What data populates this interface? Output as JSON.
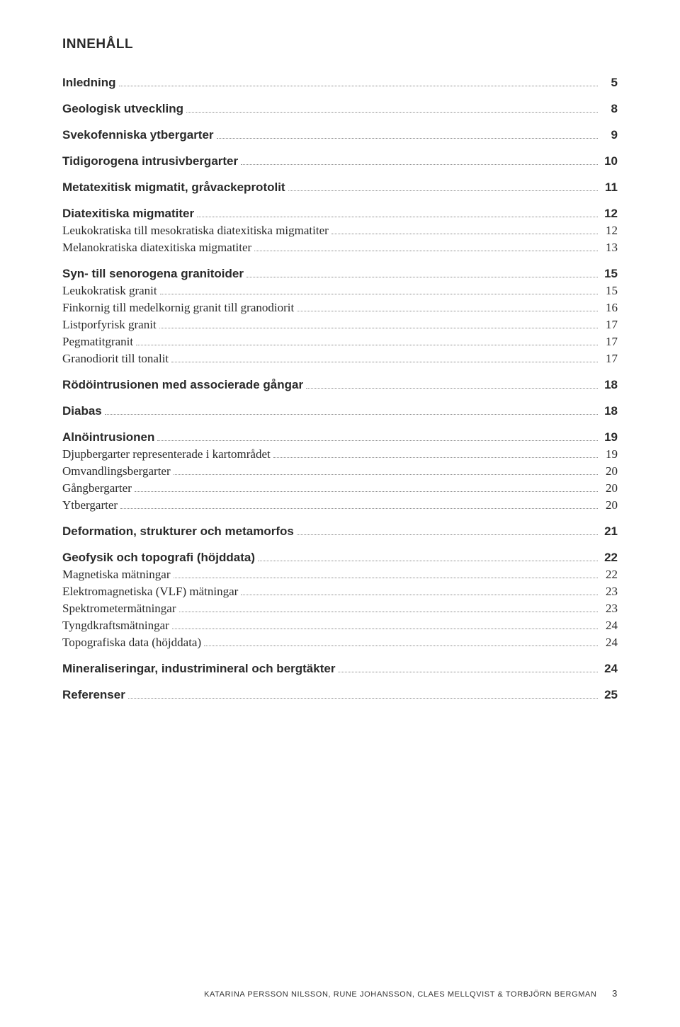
{
  "title": "INNEHÅLL",
  "colors": {
    "text": "#2a2a2a",
    "leader": "#8a8a8a",
    "background": "#ffffff"
  },
  "typography": {
    "heading_font": "Arial, Helvetica, sans-serif",
    "body_font": "Georgia, 'Times New Roman', serif",
    "title_size_pt": 14,
    "bold_entry_size_pt": 12,
    "regular_entry_size_pt": 12,
    "footer_size_pt": 8
  },
  "toc": [
    {
      "group": [
        {
          "label": "Inledning",
          "page": "5",
          "level": 0
        }
      ]
    },
    {
      "group": [
        {
          "label": "Geologisk utveckling",
          "page": "8",
          "level": 0
        }
      ]
    },
    {
      "group": [
        {
          "label": "Svekofenniska ytbergarter",
          "page": "9",
          "level": 0
        }
      ]
    },
    {
      "group": [
        {
          "label": "Tidigorogena intrusivbergarter",
          "page": "10",
          "level": 0
        }
      ]
    },
    {
      "group": [
        {
          "label": "Metatexitisk migmatit, gråvackeprotolit",
          "page": "11",
          "level": 0
        }
      ]
    },
    {
      "group": [
        {
          "label": "Diatexitiska migmatiter",
          "page": "12",
          "level": 0
        },
        {
          "label": "Leukokratiska till mesokratiska diatexitiska migmatiter",
          "page": "12",
          "level": 1
        },
        {
          "label": "Melanokratiska diatexitiska migmatiter",
          "page": "13",
          "level": 1
        }
      ]
    },
    {
      "group": [
        {
          "label": "Syn- till senorogena granitoider",
          "page": "15",
          "level": 0
        },
        {
          "label": "Leukokratisk granit",
          "page": "15",
          "level": 1
        },
        {
          "label": "Finkornig till medelkornig granit till granodiorit",
          "page": "16",
          "level": 1
        },
        {
          "label": "Listporfyrisk granit",
          "page": "17",
          "level": 1
        },
        {
          "label": "Pegmatitgranit",
          "page": "17",
          "level": 1
        },
        {
          "label": "Granodiorit till tonalit",
          "page": "17",
          "level": 1
        }
      ]
    },
    {
      "group": [
        {
          "label": "Rödöintrusionen med associerade gångar",
          "page": "18",
          "level": 0
        }
      ]
    },
    {
      "group": [
        {
          "label": "Diabas",
          "page": "18",
          "level": 0
        }
      ]
    },
    {
      "group": [
        {
          "label": "Alnöintrusionen",
          "page": "19",
          "level": 0
        },
        {
          "label": "Djupbergarter representerade i kartområdet",
          "page": "19",
          "level": 1
        },
        {
          "label": "Omvandlingsbergarter",
          "page": "20",
          "level": 1
        },
        {
          "label": "Gångbergarter",
          "page": "20",
          "level": 1
        },
        {
          "label": "Ytbergarter",
          "page": "20",
          "level": 1
        }
      ]
    },
    {
      "group": [
        {
          "label": "Deformation, strukturer och metamorfos",
          "page": "21",
          "level": 0
        }
      ]
    },
    {
      "group": [
        {
          "label": "Geofysik och topografi (höjddata)",
          "page": "22",
          "level": 0
        },
        {
          "label": "Magnetiska mätningar",
          "page": "22",
          "level": 1
        },
        {
          "label": "Elektromagnetiska (VLF) mätningar",
          "page": "23",
          "level": 1
        },
        {
          "label": "Spektrometermätningar",
          "page": "23",
          "level": 1
        },
        {
          "label": "Tyngdkraftsmätningar",
          "page": "24",
          "level": 1
        },
        {
          "label": "Topografiska data (höjddata)",
          "page": "24",
          "level": 1
        }
      ]
    },
    {
      "group": [
        {
          "label": "Mineraliseringar, industrimineral och bergtäkter",
          "page": "24",
          "level": 0
        }
      ]
    },
    {
      "group": [
        {
          "label": "Referenser",
          "page": "25",
          "level": 0
        }
      ]
    }
  ],
  "footer": {
    "authors": "KATARINA PERSSON NILSSON, RUNE JOHANSSON, CLAES MELLQVIST & TORBJÖRN BERGMAN",
    "page_number": "3"
  }
}
